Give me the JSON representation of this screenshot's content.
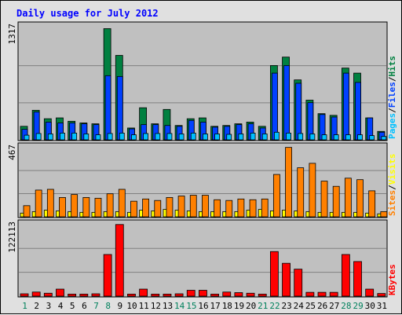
{
  "title": "Daily usage for July 2012",
  "colors": {
    "hits": "#008040",
    "files": "#0040ff",
    "pages": "#00c0ff",
    "visits": "#ffff00",
    "sites": "#ff8000",
    "kbytes": "#ff0000",
    "title": "#0000ff",
    "weekend": "#00805c",
    "panel": "#c0c0c0",
    "frame": "#e0e0e0"
  },
  "chart_data": [
    {
      "type": "bar",
      "panel": "top",
      "y_max_label": "1317",
      "ylim": [
        0,
        1317
      ],
      "legend": [
        "Pages",
        "Files",
        "Hits"
      ],
      "legend_separator": "/",
      "categories": [
        "1",
        "2",
        "3",
        "4",
        "5",
        "6",
        "7",
        "8",
        "9",
        "10",
        "11",
        "12",
        "13",
        "14",
        "15",
        "16",
        "17",
        "18",
        "19",
        "20",
        "21",
        "22",
        "23",
        "24",
        "25",
        "26",
        "27",
        "28",
        "29",
        "30",
        "31"
      ],
      "series": [
        {
          "name": "Hits",
          "color_key": "hits",
          "values": [
            160,
            350,
            250,
            260,
            220,
            200,
            190,
            1317,
            1000,
            140,
            380,
            190,
            360,
            170,
            250,
            260,
            160,
            170,
            190,
            210,
            160,
            880,
            980,
            710,
            470,
            310,
            290,
            850,
            790,
            260,
            100
          ]
        },
        {
          "name": "Files",
          "color_key": "files",
          "values": [
            125,
            330,
            210,
            200,
            200,
            190,
            180,
            760,
            750,
            130,
            180,
            180,
            170,
            160,
            230,
            210,
            150,
            160,
            180,
            190,
            140,
            790,
            880,
            670,
            440,
            300,
            270,
            790,
            680,
            260,
            90
          ]
        },
        {
          "name": "Pages",
          "color_key": "pages",
          "values": [
            55,
            75,
            70,
            80,
            80,
            70,
            60,
            75,
            80,
            60,
            75,
            75,
            75,
            70,
            80,
            70,
            70,
            65,
            70,
            80,
            70,
            90,
            80,
            75,
            70,
            60,
            60,
            60,
            60,
            50,
            40
          ]
        }
      ]
    },
    {
      "type": "bar",
      "panel": "middle",
      "y_max_label": "467",
      "ylim": [
        0,
        467
      ],
      "legend": [
        "Sites",
        "Visits"
      ],
      "legend_separator": "/",
      "categories": [
        "1",
        "2",
        "3",
        "4",
        "5",
        "6",
        "7",
        "8",
        "9",
        "10",
        "11",
        "12",
        "13",
        "14",
        "15",
        "16",
        "17",
        "18",
        "19",
        "20",
        "21",
        "22",
        "23",
        "24",
        "25",
        "26",
        "27",
        "28",
        "29",
        "30",
        "31"
      ],
      "series": [
        {
          "name": "Visits",
          "color_key": "visits",
          "values": [
            25,
            35,
            45,
            40,
            35,
            30,
            30,
            35,
            35,
            30,
            45,
            40,
            50,
            45,
            40,
            35,
            35,
            35,
            35,
            45,
            50,
            40,
            45,
            40,
            35,
            30,
            30,
            30,
            30,
            25,
            20
          ]
        },
        {
          "name": "Sites",
          "color_key": "sites",
          "values": [
            75,
            180,
            185,
            130,
            150,
            130,
            125,
            155,
            185,
            105,
            120,
            110,
            130,
            140,
            145,
            145,
            115,
            110,
            120,
            115,
            120,
            285,
            467,
            330,
            360,
            240,
            205,
            260,
            250,
            175,
            35
          ]
        }
      ]
    },
    {
      "type": "bar",
      "panel": "bottom",
      "y_max_label": "122113",
      "ylim": [
        0,
        122113
      ],
      "legend": [
        "KBytes"
      ],
      "categories": [
        "1",
        "2",
        "3",
        "4",
        "5",
        "6",
        "7",
        "8",
        "9",
        "10",
        "11",
        "12",
        "13",
        "14",
        "15",
        "16",
        "17",
        "18",
        "19",
        "20",
        "21",
        "22",
        "23",
        "24",
        "25",
        "26",
        "27",
        "28",
        "29",
        "30",
        "31"
      ],
      "series": [
        {
          "name": "KBytes",
          "color_key": "kbytes",
          "values": [
            4000,
            7000,
            5000,
            12000,
            3500,
            3500,
            4000,
            71000,
            122113,
            3500,
            12000,
            3500,
            3500,
            4000,
            10000,
            10000,
            3500,
            7000,
            6000,
            5000,
            3500,
            76000,
            56000,
            46000,
            6500,
            6500,
            6500,
            71000,
            59000,
            12000,
            4500
          ]
        }
      ]
    }
  ],
  "x_axis": {
    "weekend_days": [
      "1",
      "7",
      "8",
      "14",
      "15",
      "21",
      "22",
      "28",
      "29"
    ]
  }
}
